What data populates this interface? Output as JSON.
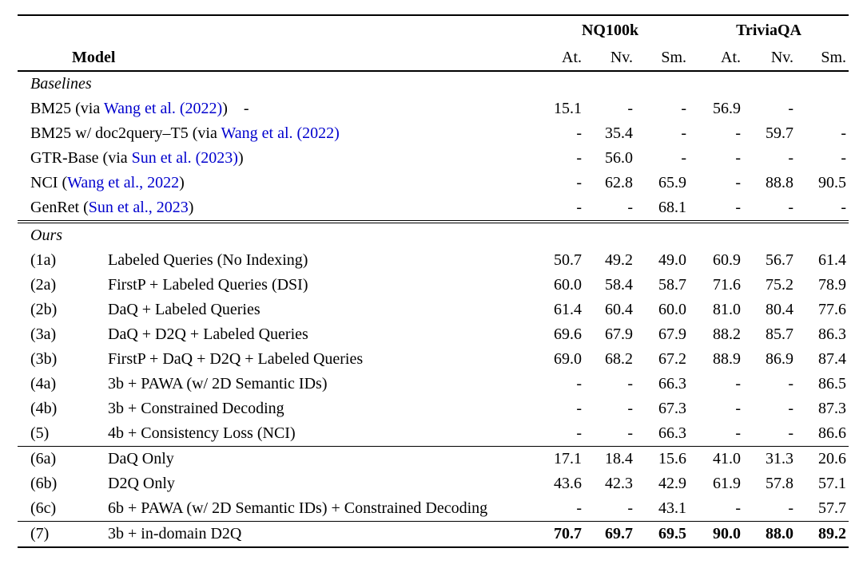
{
  "link_color": "#0000CD",
  "header": {
    "model_label": "Model",
    "groups": [
      {
        "label": "NQ100k",
        "cols": [
          "At.",
          "Nv.",
          "Sm."
        ]
      },
      {
        "label": "TriviaQA",
        "cols": [
          "At.",
          "Nv.",
          "Sm."
        ]
      }
    ]
  },
  "sections": [
    {
      "title": "Baselines",
      "divider": "none",
      "rows": [
        {
          "num": "",
          "model": [
            {
              "t": "BM25 (via "
            },
            {
              "t": "Wang et al. (2022)",
              "cite": true
            },
            {
              "t": ")    -"
            }
          ],
          "values": [
            "15.1",
            "-",
            "-",
            "56.9",
            "-",
            ""
          ]
        },
        {
          "num": "",
          "model": [
            {
              "t": "BM25 w/ doc2query–T5 (via "
            },
            {
              "t": "Wang et al. (2022)",
              "cite": true
            }
          ],
          "values": [
            "-",
            "35.4",
            "-",
            "-",
            "59.7",
            "-"
          ]
        },
        {
          "num": "",
          "model": [
            {
              "t": "GTR-Base (via "
            },
            {
              "t": "Sun et al. (2023)",
              "cite": true
            },
            {
              "t": ")"
            }
          ],
          "values": [
            "-",
            "56.0",
            "-",
            "-",
            "-",
            "-"
          ]
        },
        {
          "num": "",
          "model": [
            {
              "t": "NCI ("
            },
            {
              "t": "Wang et al., 2022",
              "cite": true
            },
            {
              "t": ")"
            }
          ],
          "values": [
            "-",
            "62.8",
            "65.9",
            "-",
            "88.8",
            "90.5"
          ]
        },
        {
          "num": "",
          "model": [
            {
              "t": "GenRet ("
            },
            {
              "t": "Sun et al., 2023",
              "cite": true
            },
            {
              "t": ")"
            }
          ],
          "values": [
            "-",
            "-",
            "68.1",
            "-",
            "-",
            "-"
          ]
        }
      ]
    },
    {
      "title": "Ours",
      "divider": "double",
      "rows": [
        {
          "num": "(1a)",
          "model": [
            {
              "t": "Labeled Queries (No Indexing)"
            }
          ],
          "values": [
            "50.7",
            "49.2",
            "49.0",
            "60.9",
            "56.7",
            "61.4"
          ]
        },
        {
          "num": "(2a)",
          "model": [
            {
              "t": "FirstP + Labeled Queries (DSI)"
            }
          ],
          "values": [
            "60.0",
            "58.4",
            "58.7",
            "71.6",
            "75.2",
            "78.9"
          ]
        },
        {
          "num": "(2b)",
          "model": [
            {
              "t": "DaQ + Labeled Queries"
            }
          ],
          "values": [
            "61.4",
            "60.4",
            "60.0",
            "81.0",
            "80.4",
            "77.6"
          ]
        },
        {
          "num": "(3a)",
          "model": [
            {
              "t": "DaQ + D2Q + Labeled Queries"
            }
          ],
          "values": [
            "69.6",
            "67.9",
            "67.9",
            "88.2",
            "85.7",
            "86.3"
          ]
        },
        {
          "num": "(3b)",
          "model": [
            {
              "t": "FirstP + DaQ + D2Q + Labeled Queries"
            }
          ],
          "values": [
            "69.0",
            "68.2",
            "67.2",
            "88.9",
            "86.9",
            "87.4"
          ]
        },
        {
          "num": "(4a)",
          "model": [
            {
              "t": "3b + PAWA (w/ 2D Semantic IDs)"
            }
          ],
          "values": [
            "-",
            "-",
            "66.3",
            "-",
            "-",
            "86.5"
          ]
        },
        {
          "num": "(4b)",
          "model": [
            {
              "t": "3b + Constrained Decoding"
            }
          ],
          "values": [
            "-",
            "-",
            "67.3",
            "-",
            "-",
            "87.3"
          ]
        },
        {
          "num": "(5)",
          "model": [
            {
              "t": "4b + Consistency Loss (NCI)"
            }
          ],
          "values": [
            "-",
            "-",
            "66.3",
            "-",
            "-",
            "86.6"
          ]
        }
      ]
    },
    {
      "title": "",
      "divider": "single",
      "rows": [
        {
          "num": "(6a)",
          "model": [
            {
              "t": "DaQ Only"
            }
          ],
          "values": [
            "17.1",
            "18.4",
            "15.6",
            "41.0",
            "31.3",
            "20.6"
          ]
        },
        {
          "num": "(6b)",
          "model": [
            {
              "t": "D2Q Only"
            }
          ],
          "values": [
            "43.6",
            "42.3",
            "42.9",
            "61.9",
            "57.8",
            "57.1"
          ]
        },
        {
          "num": "(6c)",
          "model": [
            {
              "t": "6b + PAWA (w/ 2D Semantic IDs) + Constrained Decoding"
            }
          ],
          "values": [
            "-",
            "-",
            "43.1",
            "-",
            "-",
            "57.7"
          ]
        }
      ]
    },
    {
      "title": "",
      "divider": "single",
      "rows": [
        {
          "num": "(7)",
          "model": [
            {
              "t": "3b + in-domain D2Q"
            }
          ],
          "bold": true,
          "values": [
            "70.7",
            "69.7",
            "69.5",
            "90.0",
            "88.0",
            "89.2"
          ]
        }
      ]
    }
  ]
}
